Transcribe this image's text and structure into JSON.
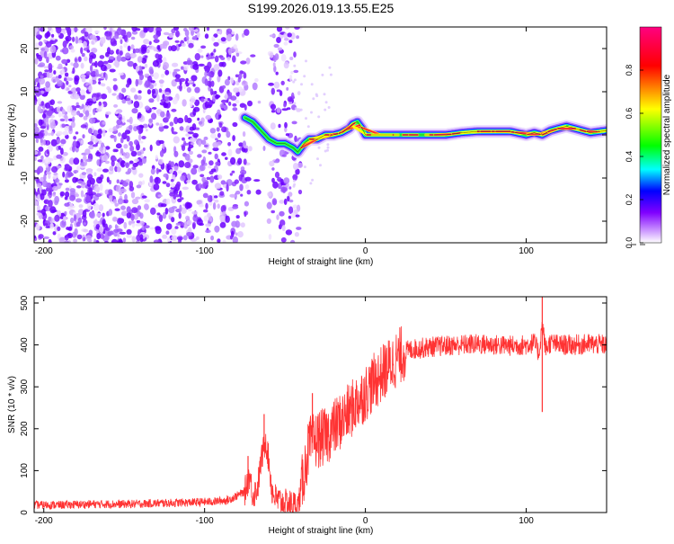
{
  "figure": {
    "title": "S199.2026.019.13.55.E25"
  },
  "chart_data": [
    {
      "type": "heatmap",
      "xlabel": "Height of straight line (km)",
      "ylabel": "Frequency (Hz)",
      "xlim": [
        -206,
        150
      ],
      "ylim": [
        -25,
        25
      ],
      "xticks": [
        {
          "value": -200,
          "label": "-200"
        },
        {
          "value": -100,
          "label": "-100"
        },
        {
          "value": 0,
          "label": "0"
        },
        {
          "value": 100,
          "label": "100"
        }
      ],
      "yticks": [
        {
          "value": -20,
          "label": "-20"
        },
        {
          "value": -10,
          "label": "-10"
        },
        {
          "value": 0,
          "label": "0"
        },
        {
          "value": 10,
          "label": "10"
        },
        {
          "value": 20,
          "label": "20"
        }
      ],
      "ridge": {
        "x": [
          -75,
          -70,
          -65,
          -60,
          -55,
          -50,
          -45,
          -42,
          -38,
          -35,
          -30,
          -25,
          -20,
          -15,
          -10,
          -8,
          -5,
          -2,
          0,
          5,
          10,
          20,
          30,
          40,
          50,
          60,
          70,
          80,
          90,
          100,
          105,
          110,
          115,
          120,
          125,
          130,
          140,
          150
        ],
        "y": [
          4,
          3,
          1,
          -1,
          -2,
          -2,
          -3,
          -4,
          -2,
          -1,
          -1,
          0,
          0,
          0.5,
          1.5,
          2.5,
          3,
          1.5,
          0,
          0,
          0,
          0,
          0,
          0,
          0,
          0.5,
          0.8,
          0.8,
          0.8,
          0,
          0.5,
          0,
          1,
          1.5,
          2,
          1.5,
          0.5,
          1
        ]
      },
      "noise_region": {
        "x_range": [
          -206,
          -45
        ],
        "density": "decreasing toward right"
      },
      "colorbar": {
        "label": "Normalized spectral amplitude",
        "range": [
          0,
          1
        ],
        "ticks": [
          {
            "value": 0,
            "label": "0.0"
          },
          {
            "value": 0.2,
            "label": "0.2"
          },
          {
            "value": 0.4,
            "label": "0.4"
          },
          {
            "value": 0.6,
            "label": "0.6"
          },
          {
            "value": 0.8,
            "label": "0.8"
          }
        ],
        "colors": [
          "#ffffff",
          "#8000ff",
          "#0000ff",
          "#00ffff",
          "#00ff00",
          "#ffff00",
          "#ff0000",
          "#ff0080"
        ]
      }
    },
    {
      "type": "line",
      "xlabel": "Height of straight line (km)",
      "ylabel": "SNR (10 * v/v)",
      "xlim": [
        -206,
        150
      ],
      "ylim": [
        0,
        515
      ],
      "xticks": [
        {
          "value": -200,
          "label": "-200"
        },
        {
          "value": -100,
          "label": "-100"
        },
        {
          "value": 0,
          "label": "0"
        },
        {
          "value": 100,
          "label": "100"
        }
      ],
      "yticks": [
        {
          "value": 0,
          "label": "0"
        },
        {
          "value": 100,
          "label": "100"
        },
        {
          "value": 200,
          "label": "200"
        },
        {
          "value": 300,
          "label": "300"
        },
        {
          "value": 400,
          "label": "400"
        },
        {
          "value": 500,
          "label": "500"
        }
      ],
      "series": [
        {
          "name": "SNR",
          "color": "#ff3333",
          "x": [
            -206,
            -190,
            -170,
            -150,
            -130,
            -110,
            -95,
            -85,
            -80,
            -75,
            -72,
            -70,
            -67,
            -65,
            -62,
            -60,
            -58,
            -55,
            -50,
            -45,
            -42,
            -40,
            -37,
            -35,
            -30,
            -25,
            -20,
            -15,
            -10,
            -5,
            0,
            5,
            10,
            15,
            20,
            25,
            30,
            40,
            50,
            60,
            70,
            80,
            90,
            100,
            105,
            108,
            110,
            112,
            115,
            120,
            130,
            140,
            150
          ],
          "y": [
            18,
            18,
            20,
            20,
            22,
            24,
            26,
            30,
            40,
            50,
            90,
            40,
            60,
            120,
            175,
            120,
            50,
            30,
            22,
            20,
            15,
            55,
            120,
            160,
            175,
            180,
            200,
            220,
            240,
            265,
            285,
            310,
            330,
            350,
            370,
            385,
            390,
            395,
            398,
            400,
            402,
            400,
            398,
            400,
            405,
            380,
            450,
            390,
            405,
            400,
            400,
            402,
            400
          ]
        }
      ],
      "spikes": [
        {
          "x": -73,
          "y": 135
        },
        {
          "x": -63,
          "y": 235
        },
        {
          "x": -33,
          "y": 285
        },
        {
          "x": 110,
          "y": 515
        },
        {
          "x": 110,
          "y": 240
        }
      ]
    }
  ]
}
